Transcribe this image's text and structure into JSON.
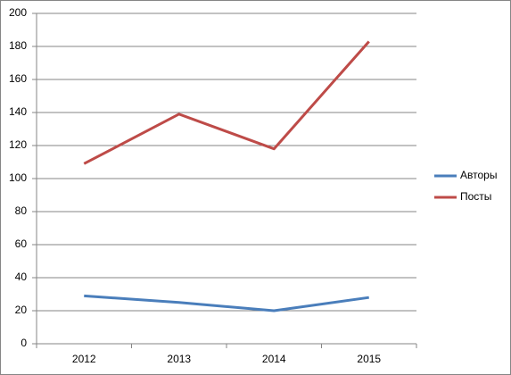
{
  "chart_data": {
    "type": "line",
    "categories": [
      "2012",
      "2013",
      "2014",
      "2015"
    ],
    "series": [
      {
        "name": "Авторы",
        "color": "#4a7ebb",
        "values": [
          29,
          25,
          20,
          28
        ]
      },
      {
        "name": "Посты",
        "color": "#be4b48",
        "values": [
          109,
          139,
          118,
          183
        ]
      }
    ],
    "ylim": [
      0,
      200
    ],
    "yticks": [
      0,
      20,
      40,
      60,
      80,
      100,
      120,
      140,
      160,
      180,
      200
    ],
    "grid": true,
    "legend": "right"
  }
}
